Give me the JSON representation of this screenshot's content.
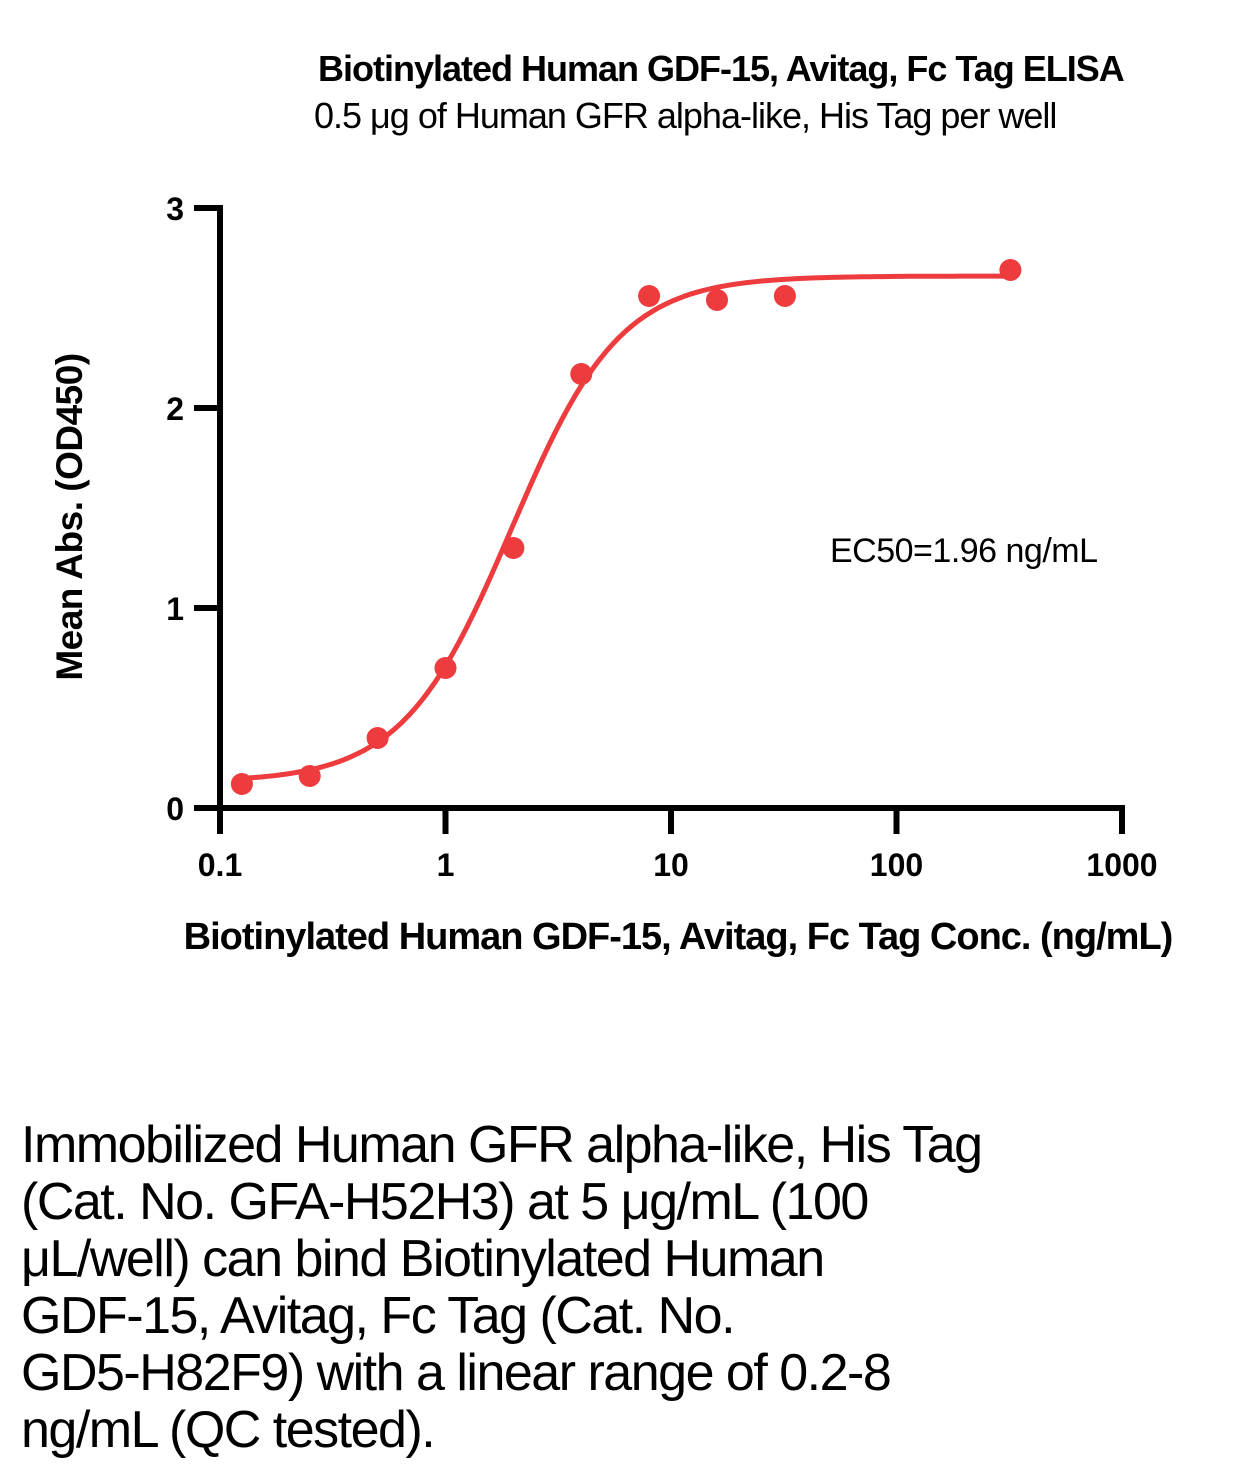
{
  "chart_data": {
    "type": "scatter",
    "title": "Biotinylated Human GDF-15, Avitag, Fc Tag ELISA",
    "subtitle": "0.5 μg of Human GFR alpha-like, His Tag per well",
    "xlabel": "Biotinylated Human GDF-15, Avitag, Fc Tag Conc. (ng/mL)",
    "ylabel": "Mean Abs. (OD450)",
    "xscale": "log",
    "xlim": [
      0.1,
      1000
    ],
    "ylim": [
      0,
      3
    ],
    "xticks": [
      0.1,
      1,
      10,
      100,
      1000
    ],
    "xtick_labels": [
      "0.1",
      "1",
      "10",
      "100",
      "1000"
    ],
    "yticks": [
      0,
      1,
      2,
      3
    ],
    "ytick_labels": [
      "0",
      "1",
      "2",
      "3"
    ],
    "grid": false,
    "legend": "none",
    "series": [
      {
        "name": "Biotinylated Human GDF-15, Avitag, Fc Tag",
        "marker": "circle",
        "color": "#ED3B3E",
        "x": [
          0.125,
          0.25,
          0.5,
          1,
          2,
          4,
          8,
          16,
          32,
          320
        ],
        "y": [
          0.12,
          0.16,
          0.35,
          0.7,
          1.3,
          2.17,
          2.56,
          2.54,
          2.56,
          2.69
        ]
      }
    ],
    "fit_curve": {
      "model": "4PL",
      "bottom": 0.13,
      "top": 2.66,
      "ec50": 1.96,
      "hill": 1.8,
      "x_start": 0.125,
      "x_end": 320,
      "color": "#ED3B3E"
    },
    "annotation": "EC50=1.96 ng/mL"
  },
  "description": {
    "lines": [
      "Immobilized Human GFR alpha-like, His Tag",
      "(Cat. No. GFA-H52H3) at 5 μg/mL (100",
      "μL/well) can bind Biotinylated Human",
      "GDF-15, Avitag, Fc Tag (Cat. No.",
      "GD5-H82F9) with a linear range of 0.2-8",
      "ng/mL (QC tested)."
    ]
  },
  "colors": {
    "series_red": "#ED3B3E",
    "axis_black": "#000000",
    "background": "#FFFFFF"
  }
}
